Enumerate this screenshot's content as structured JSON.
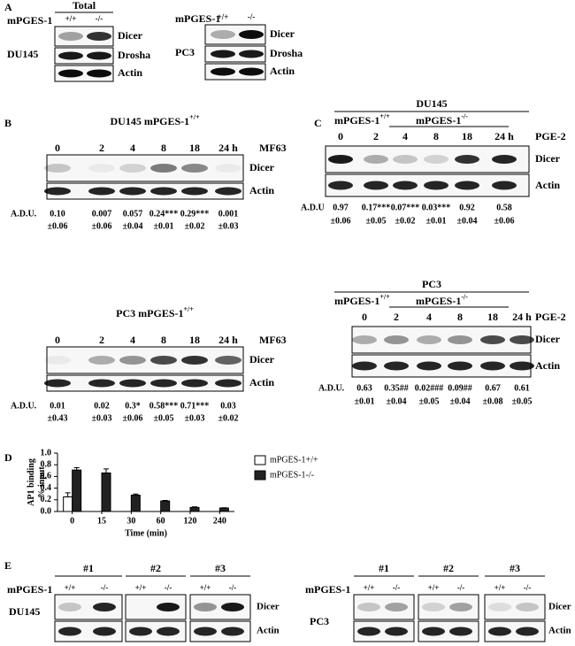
{
  "panel_a": {
    "letter": "A",
    "left": {
      "header": "Total",
      "row_label": "mPGES-1",
      "genotypes": [
        "+/+",
        "-/-"
      ],
      "cell_line": "DU145",
      "blots": [
        "Dicer",
        "Drosha",
        "Actin"
      ]
    },
    "right": {
      "row_label": "mPGES-1",
      "genotypes": [
        "+/+",
        "-/-"
      ],
      "cell_line": "PC3",
      "blots": [
        "Dicer",
        "Drosha",
        "Actin"
      ]
    }
  },
  "panel_b": {
    "letter": "B",
    "blots": [
      {
        "title": {
          "text": "DU145 mPGES-1",
          "sup": "+/+"
        },
        "lanes": [
          "0",
          "2",
          "4",
          "8",
          "18",
          "24 h"
        ],
        "treatment": "MF63",
        "blots": [
          "Dicer",
          "Actin"
        ],
        "adu_label": "A.D.U.",
        "adu": [
          "0.10",
          "0.007",
          "0.057",
          "0.24***",
          "0.29***",
          "0.001"
        ],
        "sd": [
          "±0.06",
          "±0.06",
          "±0.04",
          "±0.01",
          "±0.02",
          "±0.03"
        ]
      },
      {
        "title": {
          "text": "PC3 mPGES-1",
          "sup": "+/+"
        },
        "lanes": [
          "0",
          "2",
          "4",
          "8",
          "18",
          "24 h"
        ],
        "treatment": "MF63",
        "blots": [
          "Dicer",
          "Actin"
        ],
        "adu_label": "A.D.U.",
        "adu": [
          "0.01",
          "0.02",
          "0.3*",
          "0.58***",
          "0.71***",
          "0.03"
        ],
        "sd": [
          "±0.43",
          "±0.03",
          "±0.06",
          "±0.05",
          "±0.03",
          "±0.02"
        ]
      }
    ]
  },
  "panel_c": {
    "letter": "C",
    "blots": [
      {
        "cell_line": "DU145",
        "control": {
          "text": "mPGES-1",
          "sup": "+/+"
        },
        "knockout": {
          "text": "mPGES-1",
          "sup": "-/-"
        },
        "lanes": [
          "0",
          "2",
          "4",
          "8",
          "18",
          "24 h"
        ],
        "treatment": "PGE-2",
        "blots": [
          "Dicer",
          "Actin"
        ],
        "adu_label": "A.D.U",
        "adu": [
          "0.97",
          "0.17***",
          "0.07***",
          "0.03***",
          "0.92",
          "0.58"
        ],
        "sd": [
          "±0.06",
          "±0.05",
          "±0.02",
          "±0.01",
          "±0.04",
          "±0.06"
        ]
      },
      {
        "cell_line": "PC3",
        "control": {
          "text": "mPGES-1",
          "sup": "+/+"
        },
        "knockout": {
          "text": "mPGES-1",
          "sup": "-/-"
        },
        "lanes": [
          "0",
          "2",
          "4",
          "8",
          "18",
          "24 h"
        ],
        "treatment": "PGE-2",
        "blots": [
          "Dicer",
          "Actin"
        ],
        "adu_label": "A.D.U.",
        "adu": [
          "0.63",
          "0.35##",
          "0.02###",
          "0.09##",
          "0.67",
          "0.61"
        ],
        "sd": [
          "±0.01",
          "±0.04",
          "±0.05",
          "±0.04",
          "±0.08",
          "±0.05"
        ]
      }
    ]
  },
  "panel_d": {
    "letter": "D"
  },
  "chart_data": {
    "type": "bar",
    "x_label": "Time (min)",
    "y_label": [
      "AP1 binding",
      "% input"
    ],
    "categories": [
      "0",
      "15",
      "30",
      "60",
      "120",
      "240"
    ],
    "ylim": [
      0,
      1
    ],
    "yticks": [
      {
        "value": 0,
        "label": "0.0"
      },
      0.2,
      0.4,
      0.6,
      0.8,
      {
        "value": 1,
        "label": "1.0"
      }
    ],
    "legend": "upper right",
    "series": [
      {
        "name": "mPGES-1+/+",
        "color": "#ffffff",
        "values": [
          0.25,
          null,
          null,
          null,
          null,
          null
        ],
        "errors": [
          0.07,
          null,
          null,
          null,
          null,
          null
        ]
      },
      {
        "name": "mPGES-1-/-",
        "color": "#222222",
        "values": [
          0.71,
          0.66,
          0.28,
          0.18,
          0.07,
          0.06
        ],
        "errors": [
          0.04,
          0.07,
          0.02,
          0.01,
          0.01,
          0.005
        ]
      }
    ]
  },
  "panel_e": {
    "letter": "E",
    "left": {
      "cell_line": "DU145",
      "row_label": "mPGES-1",
      "groups": [
        {
          "label": "#1",
          "genotypes": [
            "+/+",
            "-/-"
          ]
        },
        {
          "label": "#2",
          "genotypes": [
            "+/+",
            "-/-"
          ]
        },
        {
          "label": "#3",
          "genotypes": [
            "+/+",
            "-/-"
          ]
        }
      ],
      "blots": [
        "Dicer",
        "Actin"
      ]
    },
    "right": {
      "cell_line": "PC3",
      "row_label": "mPGES-1",
      "groups": [
        {
          "label": "#1",
          "genotypes": [
            "+/+",
            "-/-"
          ]
        },
        {
          "label": "#2",
          "genotypes": [
            "+/+",
            "-/-"
          ]
        },
        {
          "label": "#3",
          "genotypes": [
            "+/+",
            "-/-"
          ]
        }
      ],
      "blots": [
        "Dicer",
        "Actin"
      ]
    }
  }
}
